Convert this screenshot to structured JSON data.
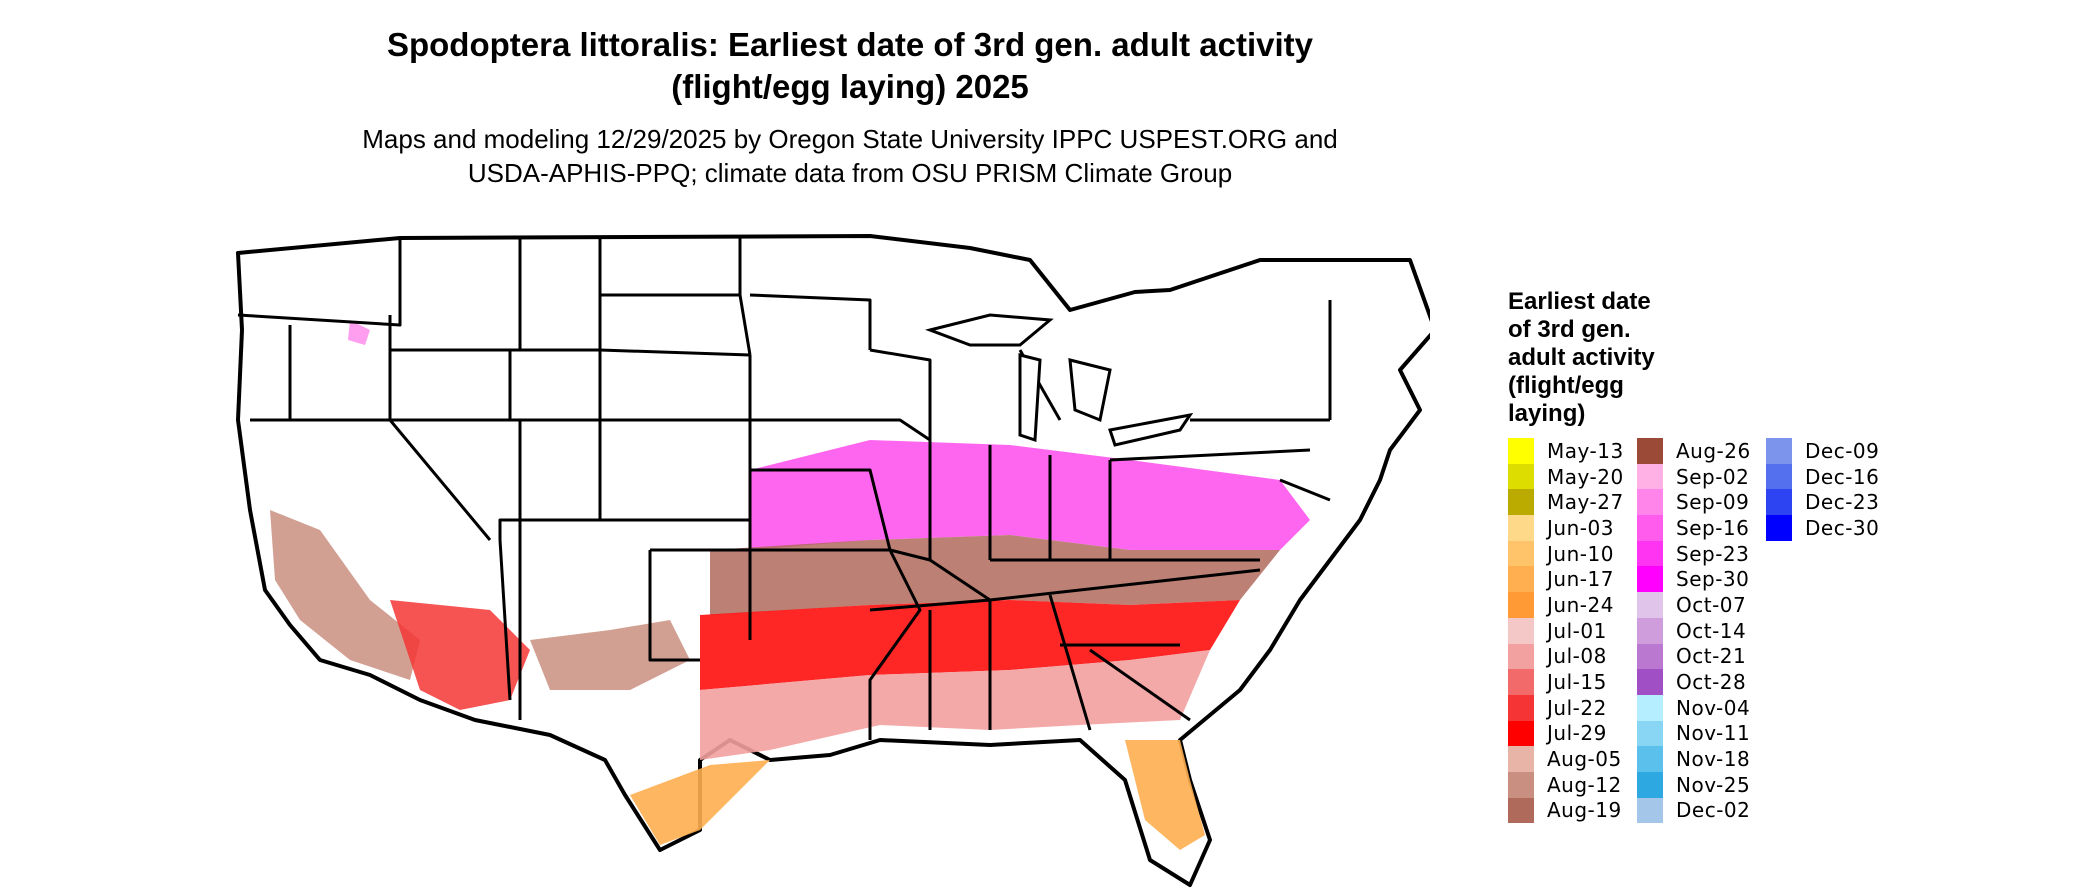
{
  "title_line1": "Spodoptera littoralis: Earliest date of 3rd gen. adult activity",
  "title_line2": "(flight/egg laying) 2025",
  "subtitle_line1": "Maps and modeling 12/29/2025 by Oregon State University IPPC USPEST.ORG and",
  "subtitle_line2": "USDA-APHIS-PPQ; climate data from OSU PRISM Climate Group",
  "legend": {
    "title_lines": [
      "Earliest date",
      "of 3rd gen.",
      "adult activity",
      "(flight/egg",
      "laying)"
    ],
    "columns": [
      [
        {
          "label": "May-13",
          "color": "#ffff00"
        },
        {
          "label": "May-20",
          "color": "#dddd00"
        },
        {
          "label": "May-27",
          "color": "#bbaa00"
        },
        {
          "label": "Jun-03",
          "color": "#ffd98a"
        },
        {
          "label": "Jun-10",
          "color": "#ffc46a"
        },
        {
          "label": "Jun-17",
          "color": "#ffae50"
        },
        {
          "label": "Jun-24",
          "color": "#ff9a35"
        },
        {
          "label": "Jul-01",
          "color": "#f5c8c8"
        },
        {
          "label": "Jul-08",
          "color": "#f3a0a0"
        },
        {
          "label": "Jul-15",
          "color": "#f26a6a"
        },
        {
          "label": "Jul-22",
          "color": "#f53535"
        },
        {
          "label": "Jul-29",
          "color": "#ff0000"
        },
        {
          "label": "Aug-05",
          "color": "#e8b4a8"
        },
        {
          "label": "Aug-12",
          "color": "#c98f80"
        },
        {
          "label": "Aug-19",
          "color": "#b06a5c"
        }
      ],
      [
        {
          "label": "Aug-26",
          "color": "#9a4a36"
        },
        {
          "label": "Sep-02",
          "color": "#ffb0e4"
        },
        {
          "label": "Sep-09",
          "color": "#ff85ea"
        },
        {
          "label": "Sep-16",
          "color": "#ff5cee"
        },
        {
          "label": "Sep-23",
          "color": "#ff33f2"
        },
        {
          "label": "Sep-30",
          "color": "#ff00ff"
        },
        {
          "label": "Oct-07",
          "color": "#e0c4ea"
        },
        {
          "label": "Oct-14",
          "color": "#cf9cdc"
        },
        {
          "label": "Oct-21",
          "color": "#bb78d0"
        },
        {
          "label": "Oct-28",
          "color": "#a050c4"
        },
        {
          "label": "Nov-04",
          "color": "#b4eeff"
        },
        {
          "label": "Nov-11",
          "color": "#88d6f4"
        },
        {
          "label": "Nov-18",
          "color": "#5cc0ec"
        },
        {
          "label": "Nov-25",
          "color": "#2ea8e0"
        },
        {
          "label": "Dec-02",
          "color": "#a4c6e8"
        }
      ],
      [
        {
          "label": "Dec-09",
          "color": "#7c94ec"
        },
        {
          "label": "Dec-16",
          "color": "#5470ee"
        },
        {
          "label": "Dec-23",
          "color": "#2c44f2"
        },
        {
          "label": "Dec-30",
          "color": "#0000ff"
        }
      ]
    ]
  }
}
